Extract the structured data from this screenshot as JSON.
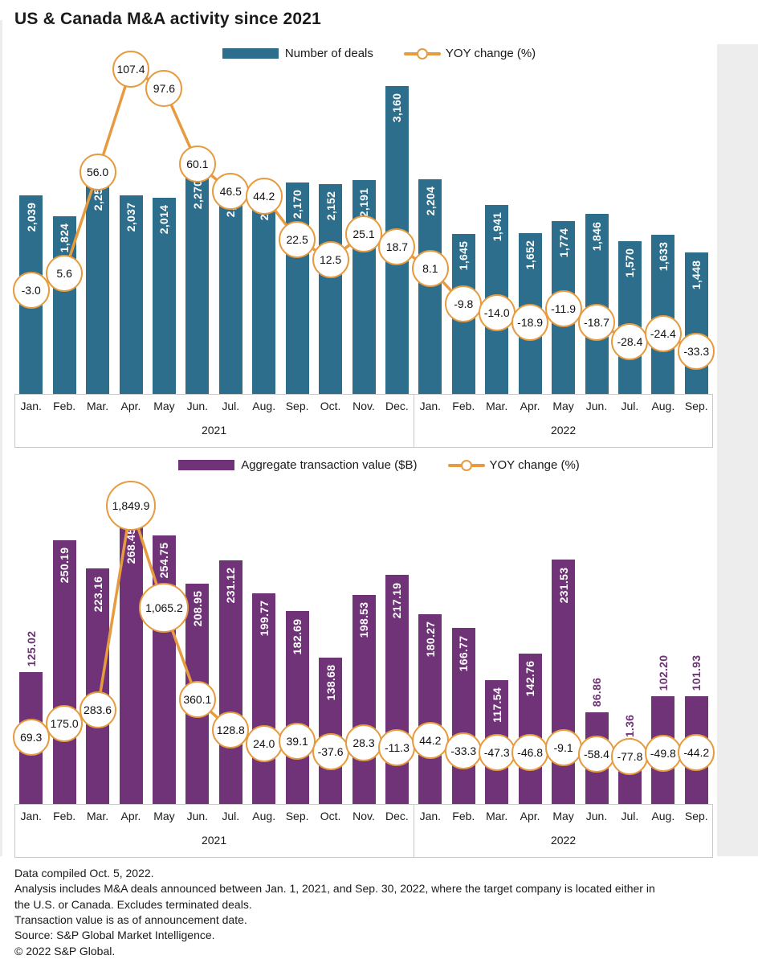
{
  "page": {
    "title": "US & Canada M&A activity since 2021"
  },
  "style": {
    "deals_bar_color": "#2D6E8D",
    "value_bar_color": "#703378",
    "yoy_line_color": "#E69B40",
    "axis_border_color": "#C9C9C9",
    "inside_label_color": "#FFFFFF",
    "text_color": "#1A1A1A"
  },
  "chart_data": [
    {
      "id": "deals",
      "type": "bar",
      "title": "US & Canada M&A activity since 2021",
      "categories": [
        "Jan.",
        "Feb.",
        "Mar.",
        "Apr.",
        "May",
        "Jun.",
        "Jul.",
        "Aug.",
        "Sep.",
        "Oct.",
        "Nov.",
        "Dec.",
        "Jan.",
        "Feb.",
        "Mar.",
        "Apr.",
        "May",
        "Jun.",
        "Jul.",
        "Aug.",
        "Sep."
      ],
      "year_groups": [
        {
          "label": "2021",
          "count": 12
        },
        {
          "label": "2022",
          "count": 9
        }
      ],
      "legend_position": "top-center",
      "grid": false,
      "series": [
        {
          "name": "Number of deals",
          "type": "bar",
          "color": "#2D6E8D",
          "values": [
            2039,
            1824,
            2258,
            2037,
            2014,
            2270,
            2192,
            2160,
            2170,
            2152,
            2191,
            3160,
            2204,
            1645,
            1941,
            1652,
            1774,
            1846,
            1570,
            1633,
            1448
          ],
          "labels": [
            "2,039",
            "1,824",
            "2,258",
            "2,037",
            "2,014",
            "2,270",
            "2,192",
            "2,160",
            "2,170",
            "2,152",
            "2,191",
            "3,160",
            "2,204",
            "1,645",
            "1,941",
            "1,652",
            "1,774",
            "1,846",
            "1,570",
            "1,633",
            "1,448"
          ]
        },
        {
          "name": "YOY change (%)",
          "type": "line",
          "color": "#E69B40",
          "values": [
            -3.0,
            5.6,
            56.0,
            107.4,
            97.6,
            60.1,
            46.5,
            44.2,
            22.5,
            12.5,
            25.1,
            18.7,
            8.1,
            -9.8,
            -14.0,
            -18.9,
            -11.9,
            -18.7,
            -28.4,
            -24.4,
            -33.3
          ],
          "labels": [
            "-3.0",
            "5.6",
            "56.0",
            "107.4",
            "97.6",
            "60.1",
            "46.5",
            "44.2",
            "22.5",
            "12.5",
            "25.1",
            "18.7",
            "8.1",
            "-9.8",
            "-14.0",
            "-18.9",
            "-11.9",
            "-18.7",
            "-28.4",
            "-24.4",
            "-33.3"
          ]
        }
      ],
      "label_outside": []
    },
    {
      "id": "transaction_value",
      "type": "bar",
      "title": "",
      "categories": [
        "Jan.",
        "Feb.",
        "Mar.",
        "Apr.",
        "May",
        "Jun.",
        "Jul.",
        "Aug.",
        "Sep.",
        "Oct.",
        "Nov.",
        "Dec.",
        "Jan.",
        "Feb.",
        "Mar.",
        "Apr.",
        "May",
        "Jun.",
        "Jul.",
        "Aug.",
        "Sep."
      ],
      "year_groups": [
        {
          "label": "2021",
          "count": 12
        },
        {
          "label": "2022",
          "count": 9
        }
      ],
      "legend_position": "top-center",
      "grid": false,
      "series": [
        {
          "name": "Aggregate transaction value ($B)",
          "type": "bar",
          "color": "#703378",
          "values": [
            125.02,
            250.19,
            223.16,
            268.45,
            254.75,
            208.95,
            231.12,
            199.77,
            182.69,
            138.68,
            198.53,
            217.19,
            180.27,
            166.77,
            117.54,
            142.76,
            231.53,
            86.86,
            51.36,
            102.2,
            101.93
          ],
          "labels": [
            "125.02",
            "250.19",
            "223.16",
            "268.45",
            "254.75",
            "208.95",
            "231.12",
            "199.77",
            "182.69",
            "138.68",
            "198.53",
            "217.19",
            "180.27",
            "166.77",
            "117.54",
            "142.76",
            "231.53",
            "86.86",
            "51.36",
            "102.20",
            "101.93"
          ]
        },
        {
          "name": "YOY change (%)",
          "type": "line",
          "color": "#E69B40",
          "values": [
            69.3,
            175.0,
            283.6,
            1849.9,
            1065.2,
            360.1,
            128.8,
            24.0,
            39.1,
            -37.6,
            28.3,
            -11.3,
            44.2,
            -33.3,
            -47.3,
            -46.8,
            -9.1,
            -58.4,
            -77.8,
            -49.8,
            -44.2
          ],
          "labels": [
            "69.3",
            "175.0",
            "283.6",
            "1,849.9",
            "1,065.2",
            "360.1",
            "128.8",
            "24.0",
            "39.1",
            "-37.6",
            "28.3",
            "-11.3",
            "44.2",
            "-33.3",
            "-47.3",
            "-46.8",
            "-9.1",
            "-58.4",
            "-77.8",
            "-49.8",
            "-44.2"
          ]
        }
      ],
      "label_outside": [
        0,
        17,
        18,
        19,
        20
      ]
    }
  ],
  "footnotes": [
    "Data compiled Oct. 5, 2022.",
    "Analysis includes M&A deals announced between Jan. 1, 2021, and Sep. 30, 2022, where the target company is located either in the U.S. or Canada. Excludes terminated deals.",
    "Transaction value is as of announcement date.",
    "Source: S&P Global Market Intelligence.",
    "© 2022 S&P Global."
  ]
}
